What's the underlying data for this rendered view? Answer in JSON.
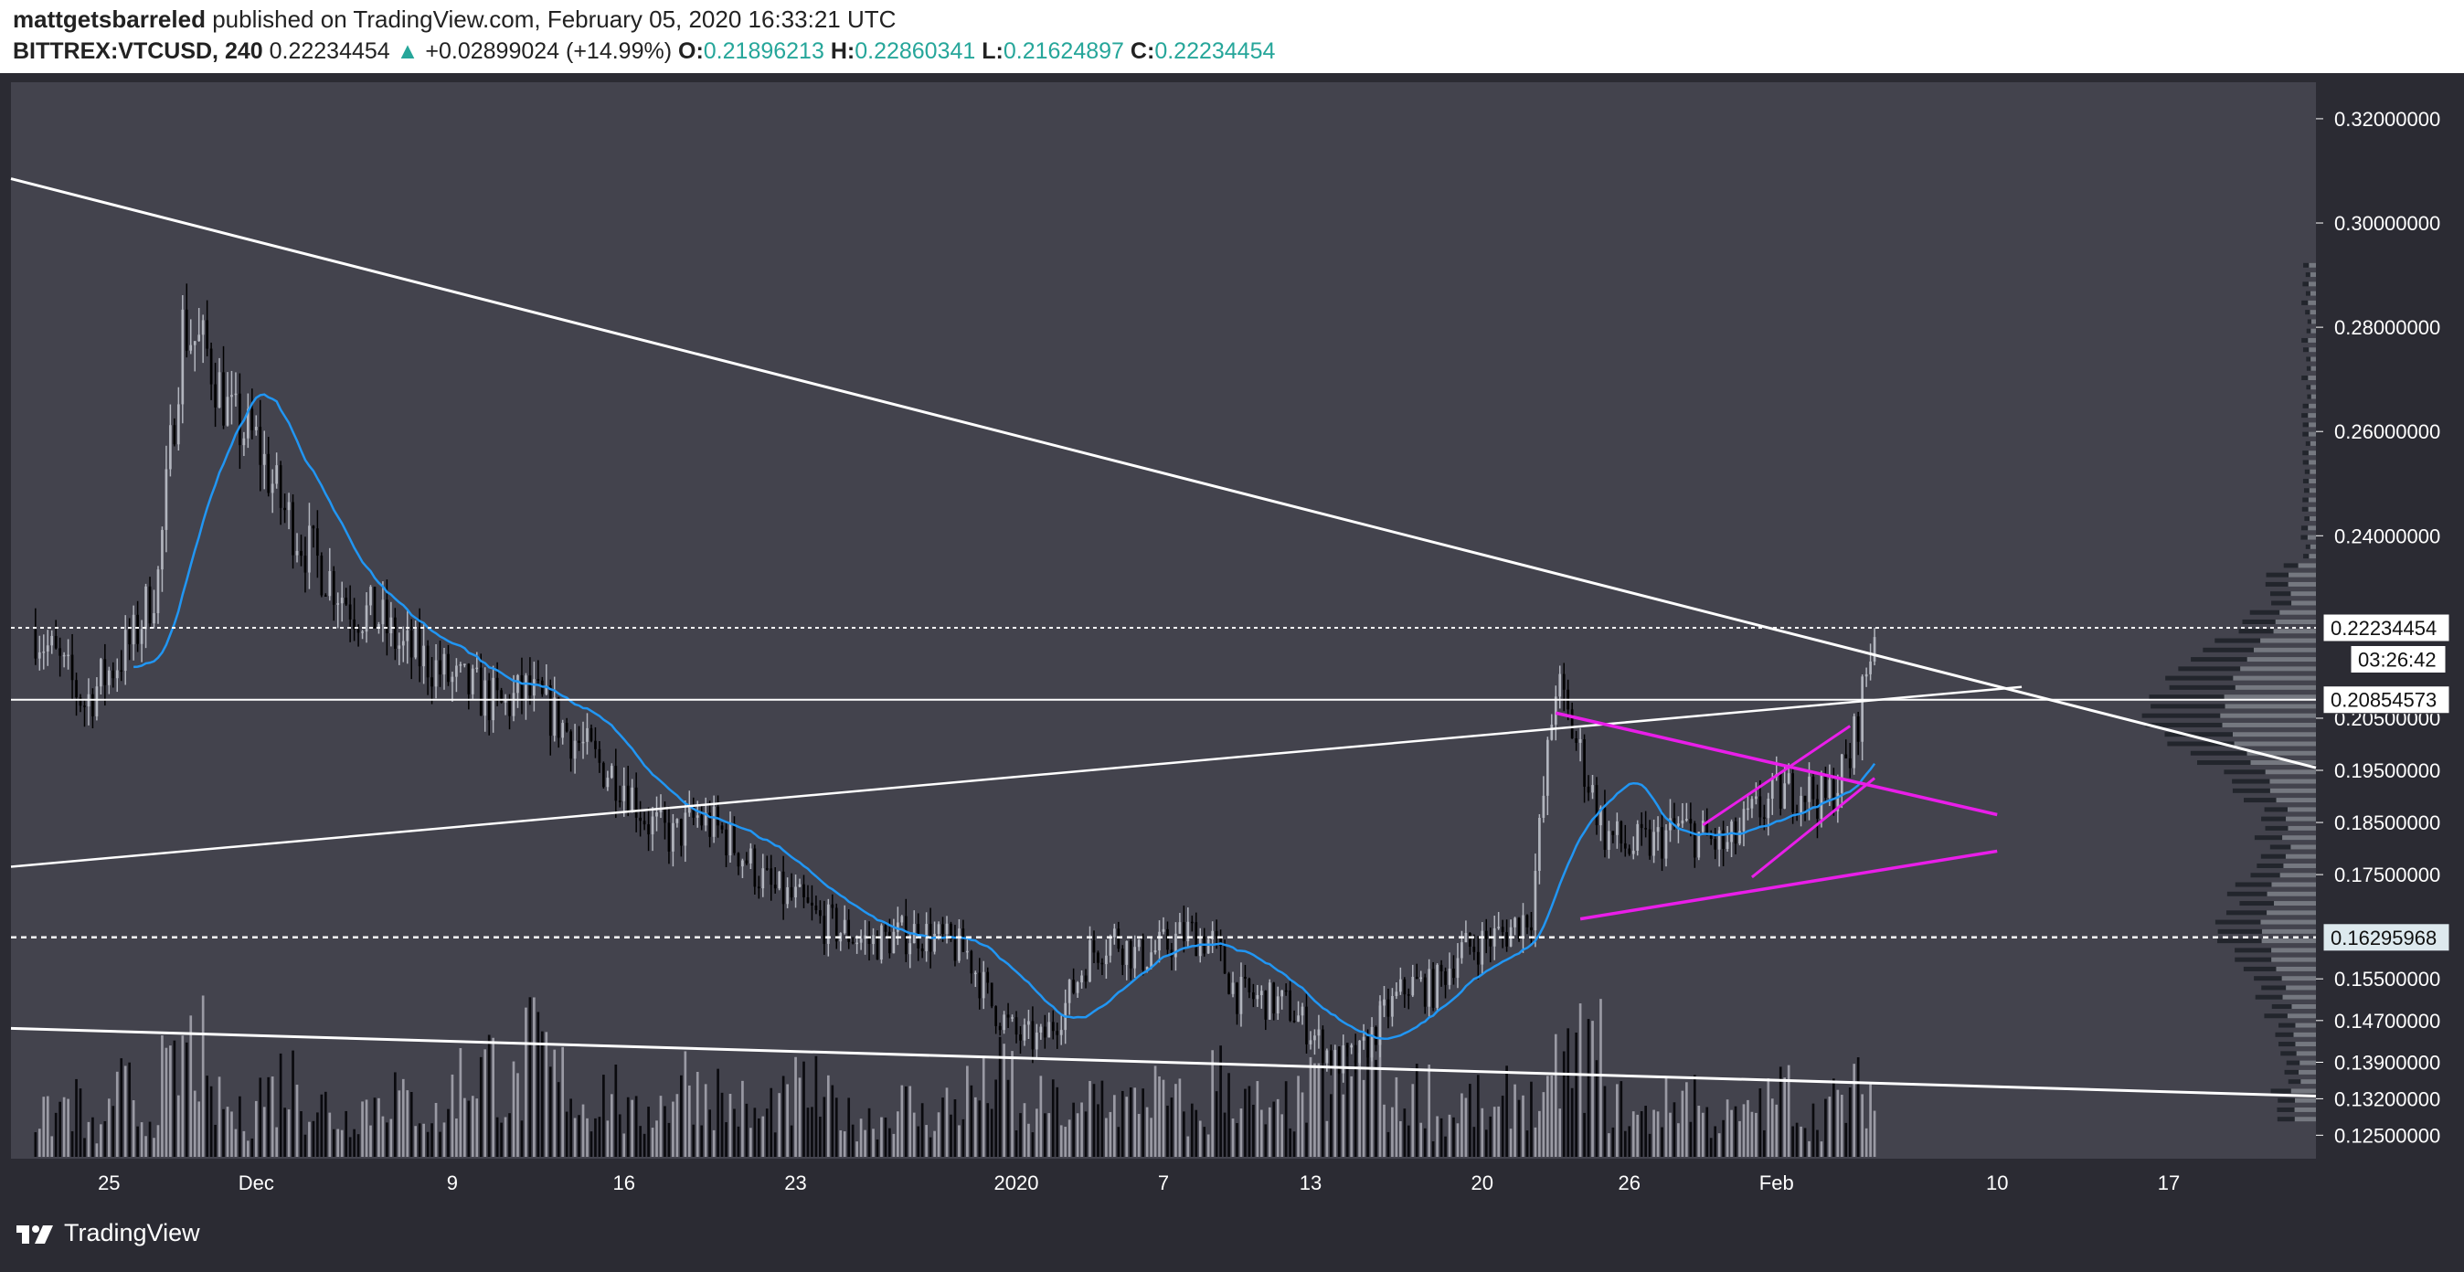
{
  "header": {
    "author": "mattgetsbarreled",
    "published_text": "published on TradingView.com, February 05, 2020 16:33:21 UTC",
    "symbol": "BITTREX:VTCUSD, 240",
    "last_price": "0.22234454",
    "change_arrow": "▲",
    "change": "+0.02899024 (+14.99%)",
    "open_label": "O:",
    "open": "0.21896213",
    "high_label": "H:",
    "high": "0.22860341",
    "low_label": "L:",
    "low": "0.21624897",
    "close_label": "C:",
    "close": "0.22234454"
  },
  "footer": {
    "brand": "TradingView"
  },
  "colors": {
    "page_bg": "#2b2b33",
    "plot_bg": "#43434d",
    "header_bg": "#ffffff",
    "up_candle": "#b2b5be",
    "down_candle": "#000000",
    "ma": "#2196f3",
    "trendline": "#ffffff",
    "pattern": "#e91ee9",
    "axis_text": "#ffffff"
  },
  "chart_data": {
    "type": "candlestick",
    "symbol": "BITTREX:VTCUSD",
    "interval": "240",
    "y_ticks": [
      "0.32000000",
      "0.30000000",
      "0.28000000",
      "0.26000000",
      "0.24000000",
      "0.20500000",
      "0.19500000",
      "0.18500000",
      "0.17500000",
      "0.15500000",
      "0.14700000",
      "0.13900000",
      "0.13200000",
      "0.12500000"
    ],
    "x_ticks": [
      "25",
      "Dec",
      "9",
      "16",
      "23",
      "2020",
      "7",
      "13",
      "20",
      "26",
      "Feb",
      "10",
      "17"
    ],
    "price_labels": [
      {
        "text": "0.22234454",
        "style": "last"
      },
      {
        "text": "03:26:42",
        "style": "countdown"
      },
      {
        "text": "0.20854573",
        "style": "level"
      },
      {
        "text": "0.16295968",
        "style": "level-dashed"
      }
    ],
    "close_series": [
      [
        "2019-11-22",
        0.222
      ],
      [
        "2019-11-23",
        0.215
      ],
      [
        "2019-11-24",
        0.208
      ],
      [
        "2019-11-25",
        0.214
      ],
      [
        "2019-11-26",
        0.22
      ],
      [
        "2019-11-27",
        0.232
      ],
      [
        "2019-11-28",
        0.28
      ],
      [
        "2019-11-29",
        0.275
      ],
      [
        "2019-11-30",
        0.262
      ],
      [
        "2019-12-01",
        0.258
      ],
      [
        "2019-12-02",
        0.246
      ],
      [
        "2019-12-03",
        0.238
      ],
      [
        "2019-12-04",
        0.232
      ],
      [
        "2019-12-05",
        0.226
      ],
      [
        "2019-12-06",
        0.224
      ],
      [
        "2019-12-07",
        0.218
      ],
      [
        "2019-12-08",
        0.216
      ],
      [
        "2019-12-09",
        0.212
      ],
      [
        "2019-12-10",
        0.21
      ],
      [
        "2019-12-11",
        0.207
      ],
      [
        "2019-12-12",
        0.21
      ],
      [
        "2019-12-13",
        0.206
      ],
      [
        "2019-12-14",
        0.201
      ],
      [
        "2019-12-15",
        0.196
      ],
      [
        "2019-12-16",
        0.193
      ],
      [
        "2019-12-17",
        0.185
      ],
      [
        "2019-12-18",
        0.182
      ],
      [
        "2019-12-19",
        0.186
      ],
      [
        "2019-12-20",
        0.183
      ],
      [
        "2019-12-21",
        0.178
      ],
      [
        "2019-12-22",
        0.172
      ],
      [
        "2019-12-23",
        0.17
      ],
      [
        "2019-12-24",
        0.166
      ],
      [
        "2019-12-25",
        0.164
      ],
      [
        "2019-12-26",
        0.162
      ],
      [
        "2019-12-27",
        0.163
      ],
      [
        "2019-12-28",
        0.164
      ],
      [
        "2019-12-29",
        0.162
      ],
      [
        "2019-12-30",
        0.16
      ],
      [
        "2019-12-31",
        0.15
      ],
      [
        "2020-01-01",
        0.144
      ],
      [
        "2020-01-02",
        0.143
      ],
      [
        "2020-01-03",
        0.15
      ],
      [
        "2020-01-04",
        0.16
      ],
      [
        "2020-01-05",
        0.163
      ],
      [
        "2020-01-06",
        0.159
      ],
      [
        "2020-01-07",
        0.161
      ],
      [
        "2020-01-08",
        0.164
      ],
      [
        "2020-01-09",
        0.162
      ],
      [
        "2020-01-10",
        0.152
      ],
      [
        "2020-01-11",
        0.151
      ],
      [
        "2020-01-12",
        0.15
      ],
      [
        "2020-01-13",
        0.145
      ],
      [
        "2020-01-14",
        0.139
      ],
      [
        "2020-01-15",
        0.14
      ],
      [
        "2020-01-16",
        0.148
      ],
      [
        "2020-01-17",
        0.154
      ],
      [
        "2020-01-18",
        0.153
      ],
      [
        "2020-01-19",
        0.16
      ],
      [
        "2020-01-20",
        0.162
      ],
      [
        "2020-01-21",
        0.164
      ],
      [
        "2020-01-22",
        0.168
      ],
      [
        "2020-01-23",
        0.212
      ],
      [
        "2020-01-24",
        0.198
      ],
      [
        "2020-01-25",
        0.183
      ],
      [
        "2020-01-26",
        0.18
      ],
      [
        "2020-01-27",
        0.181
      ],
      [
        "2020-01-28",
        0.184
      ],
      [
        "2020-01-29",
        0.182
      ],
      [
        "2020-01-30",
        0.18
      ],
      [
        "2020-01-31",
        0.186
      ],
      [
        "2020-02-01",
        0.19
      ],
      [
        "2020-02-02",
        0.192
      ],
      [
        "2020-02-03",
        0.189
      ],
      [
        "2020-02-04",
        0.197
      ],
      [
        "2020-02-05",
        0.2223
      ]
    ],
    "ma_length_days": 4,
    "volume_series": [
      3,
      4,
      2,
      5,
      3,
      6,
      8,
      4,
      3,
      5,
      6,
      4,
      3,
      4,
      5,
      4,
      3,
      6,
      7,
      5,
      8,
      6,
      4,
      5,
      3,
      4,
      6,
      5,
      4,
      3,
      4,
      5,
      4,
      3,
      3,
      4,
      3,
      4,
      5,
      6,
      3,
      4,
      3,
      5,
      4,
      5,
      4,
      3,
      6,
      4,
      3,
      4,
      5,
      6,
      8,
      4,
      5,
      3,
      4,
      3,
      5,
      4,
      7,
      8,
      4,
      3,
      4,
      5,
      3,
      3,
      4,
      5,
      3,
      4,
      5,
      4
    ]
  }
}
